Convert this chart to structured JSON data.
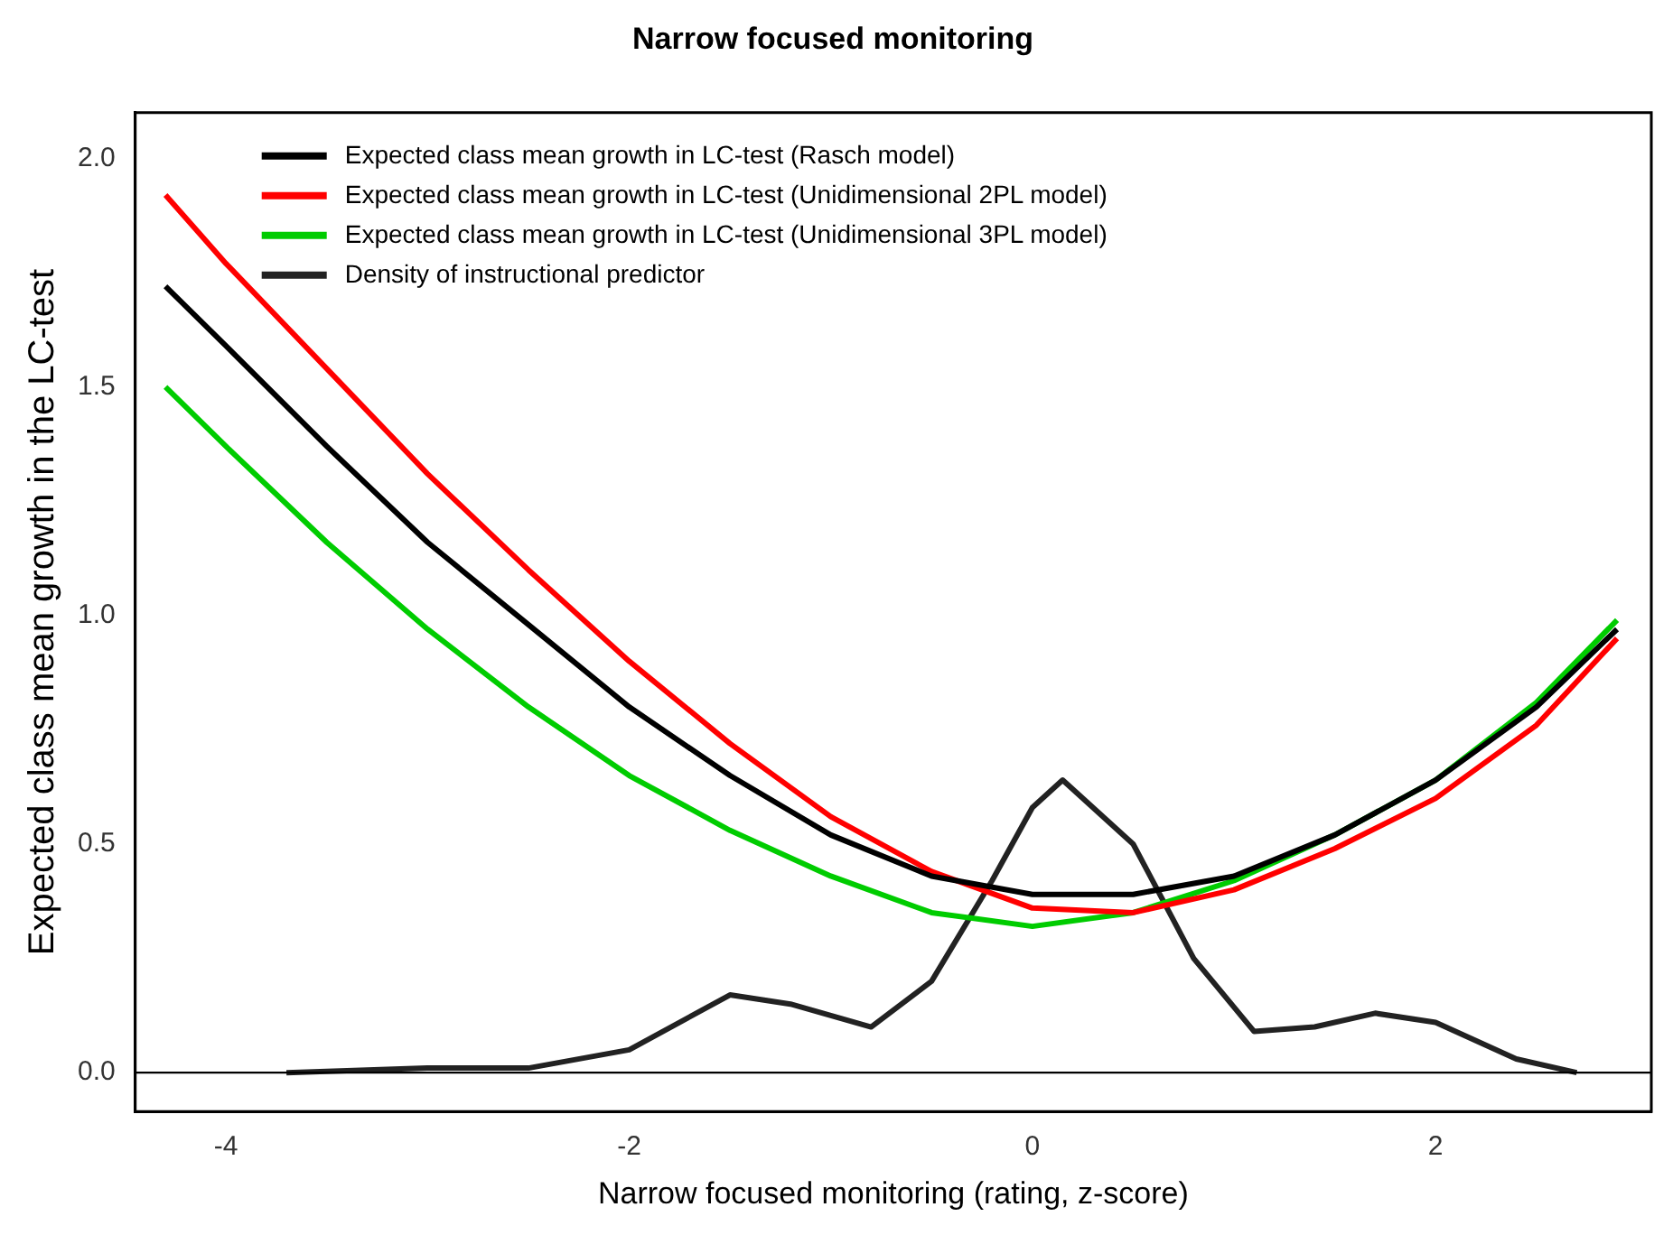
{
  "chart_data": {
    "type": "line",
    "title": "Narrow focused monitoring",
    "xlabel": "Narrow focused monitoring (rating, z-score)",
    "ylabel": "Expected class mean growth in the LC-test",
    "xlim": [
      -4.45,
      3.07
    ],
    "xticks": [
      -4,
      -2,
      0,
      2
    ],
    "ylim": [
      -0.085,
      2.1
    ],
    "yticks": [
      {
        "value": 0,
        "label": "0.0"
      },
      {
        "value": 0.5,
        "label": "0.5"
      },
      {
        "value": 1,
        "label": "1.0"
      },
      {
        "value": 1.5,
        "label": "1.5"
      },
      {
        "value": 2,
        "label": "2.0"
      }
    ],
    "grid": false,
    "legend": "top left",
    "marker": "none",
    "ref_lines": [
      {
        "axis": "y",
        "value": 0,
        "color": "#000000"
      }
    ],
    "series": [
      {
        "name": "Expected class mean growth in LC-test (Rasch model)",
        "color": "#000000",
        "x": [
          -4.3,
          -4,
          -3.5,
          -3,
          -2.5,
          -2,
          -1.5,
          -1,
          -0.5,
          0,
          0.5,
          1,
          1.5,
          2,
          2.5,
          2.9
        ],
        "values": [
          1.72,
          1.59,
          1.37,
          1.16,
          0.98,
          0.8,
          0.65,
          0.52,
          0.43,
          0.39,
          0.39,
          0.43,
          0.52,
          0.64,
          0.8,
          0.97
        ]
      },
      {
        "name": "Expected class mean growth in LC-test (Unidimensional 2PL model)",
        "color": "#ff0000",
        "x": [
          -4.3,
          -4,
          -3.5,
          -3,
          -2.5,
          -2,
          -1.5,
          -1,
          -0.5,
          0,
          0.5,
          1,
          1.5,
          2,
          2.5,
          2.9
        ],
        "values": [
          1.92,
          1.77,
          1.54,
          1.31,
          1.1,
          0.9,
          0.72,
          0.56,
          0.44,
          0.36,
          0.35,
          0.4,
          0.49,
          0.6,
          0.76,
          0.95
        ]
      },
      {
        "name": "Expected class mean growth in LC-test (Unidimensional 3PL model)",
        "color": "#00cc00",
        "x": [
          -4.3,
          -4,
          -3.5,
          -3,
          -2.5,
          -2,
          -1.5,
          -1,
          -0.5,
          0,
          0.5,
          1,
          1.5,
          2,
          2.5,
          2.9
        ],
        "values": [
          1.5,
          1.37,
          1.16,
          0.97,
          0.8,
          0.65,
          0.53,
          0.43,
          0.35,
          0.32,
          0.35,
          0.42,
          0.52,
          0.64,
          0.81,
          0.99
        ]
      },
      {
        "name": "Density of instructional predictor",
        "color": "#222222",
        "x": [
          -3.7,
          -3,
          -2.5,
          -2,
          -1.5,
          -1.2,
          -0.8,
          -0.5,
          -0.2,
          0,
          0.15,
          0.5,
          0.8,
          1.1,
          1.4,
          1.7,
          2,
          2.4,
          2.7
        ],
        "values": [
          0,
          0.01,
          0.01,
          0.05,
          0.17,
          0.15,
          0.1,
          0.2,
          0.42,
          0.58,
          0.64,
          0.5,
          0.25,
          0.09,
          0.1,
          0.13,
          0.11,
          0.03,
          0
        ]
      }
    ]
  }
}
